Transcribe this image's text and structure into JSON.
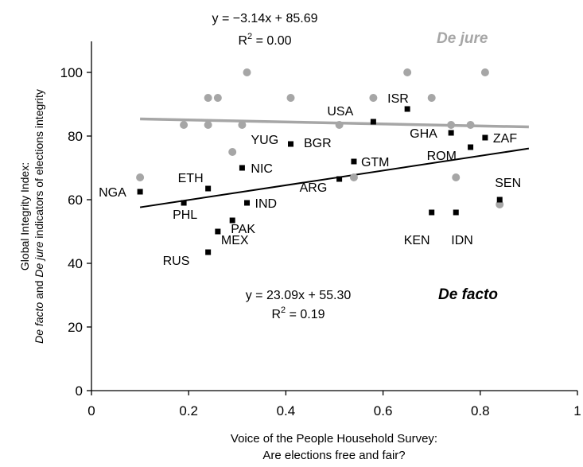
{
  "chart_data": {
    "type": "scatter",
    "xlabel_lines": [
      "Voice of the People Household Survey:",
      "Are elections free and fair?"
    ],
    "ylabel": {
      "line1": "Global Integrity Index:",
      "line2_defacto": "De facto",
      "line2_and": " and ",
      "line2_dejure": "De jure",
      "line2_rest": " indicators of elections integrity"
    },
    "xlim": [
      0,
      1
    ],
    "ylim": [
      0,
      110
    ],
    "x_ticks": [
      "0",
      "0.2",
      "0.4",
      "0.6",
      "0.8",
      "1"
    ],
    "x_tick_values": [
      0,
      0.2,
      0.4,
      0.6,
      0.8,
      1
    ],
    "y_ticks": [
      "0",
      "20",
      "40",
      "60",
      "80",
      "100"
    ],
    "y_tick_values": [
      0,
      20,
      40,
      60,
      80,
      100
    ],
    "colors": {
      "de_facto": "#000000",
      "de_jure": "#a6a6a6"
    },
    "series": [
      {
        "name": "De facto",
        "marker": "square",
        "fit": {
          "slope": 23.09,
          "intercept": 55.3,
          "equation": "y = 23.09x + 55.30",
          "r2_prefix": "R",
          "r2_sup": "2",
          "r2_value": " = 0.19"
        },
        "points": [
          {
            "label": "NGA",
            "x": 0.1,
            "y": 62.5
          },
          {
            "label": "PHL",
            "x": 0.19,
            "y": 59.0
          },
          {
            "label": "ETH",
            "x": 0.24,
            "y": 63.5
          },
          {
            "label": "RUS",
            "x": 0.24,
            "y": 43.5
          },
          {
            "label": "MEX",
            "x": 0.26,
            "y": 50.0
          },
          {
            "label": "PAK",
            "x": 0.29,
            "y": 53.5
          },
          {
            "label": "NIC",
            "x": 0.31,
            "y": 70.0
          },
          {
            "label": "IND",
            "x": 0.32,
            "y": 59.0
          },
          {
            "label": "YUG",
            "x": 0.41,
            "y": 77.5
          },
          {
            "label": "ARG",
            "x": 0.51,
            "y": 66.5
          },
          {
            "label": "GTM",
            "x": 0.54,
            "y": 72.0
          },
          {
            "label": "USA",
            "x": 0.58,
            "y": 84.5
          },
          {
            "label": "ISR",
            "x": 0.65,
            "y": 88.5
          },
          {
            "label": "KEN",
            "x": 0.7,
            "y": 56.0
          },
          {
            "label": "GHA",
            "x": 0.74,
            "y": 81.0
          },
          {
            "label": "IDN",
            "x": 0.75,
            "y": 56.0
          },
          {
            "label": "ROM",
            "x": 0.78,
            "y": 76.5
          },
          {
            "label": "ZAF",
            "x": 0.81,
            "y": 79.5
          },
          {
            "label": "SEN",
            "x": 0.84,
            "y": 60.0
          }
        ],
        "extra_labels": [
          {
            "label": "BGR"
          }
        ]
      },
      {
        "name": "De jure",
        "marker": "circle",
        "fit": {
          "slope": -3.14,
          "intercept": 85.69,
          "equation": "y = −3.14x + 85.69",
          "r2_prefix": "R",
          "r2_sup": "2",
          "r2_value": " = 0.00"
        },
        "points": [
          {
            "x": 0.1,
            "y": 67
          },
          {
            "x": 0.19,
            "y": 83.5
          },
          {
            "x": 0.24,
            "y": 92
          },
          {
            "x": 0.24,
            "y": 83.5
          },
          {
            "x": 0.26,
            "y": 92
          },
          {
            "x": 0.29,
            "y": 75
          },
          {
            "x": 0.31,
            "y": 83.5
          },
          {
            "x": 0.32,
            "y": 100
          },
          {
            "x": 0.41,
            "y": 92
          },
          {
            "x": 0.51,
            "y": 83.5
          },
          {
            "x": 0.54,
            "y": 67
          },
          {
            "x": 0.58,
            "y": 92
          },
          {
            "x": 0.65,
            "y": 100
          },
          {
            "x": 0.7,
            "y": 92
          },
          {
            "x": 0.74,
            "y": 83.5
          },
          {
            "x": 0.75,
            "y": 67
          },
          {
            "x": 0.78,
            "y": 83.5
          },
          {
            "x": 0.81,
            "y": 100
          },
          {
            "x": 0.84,
            "y": 58.5
          }
        ]
      }
    ]
  }
}
